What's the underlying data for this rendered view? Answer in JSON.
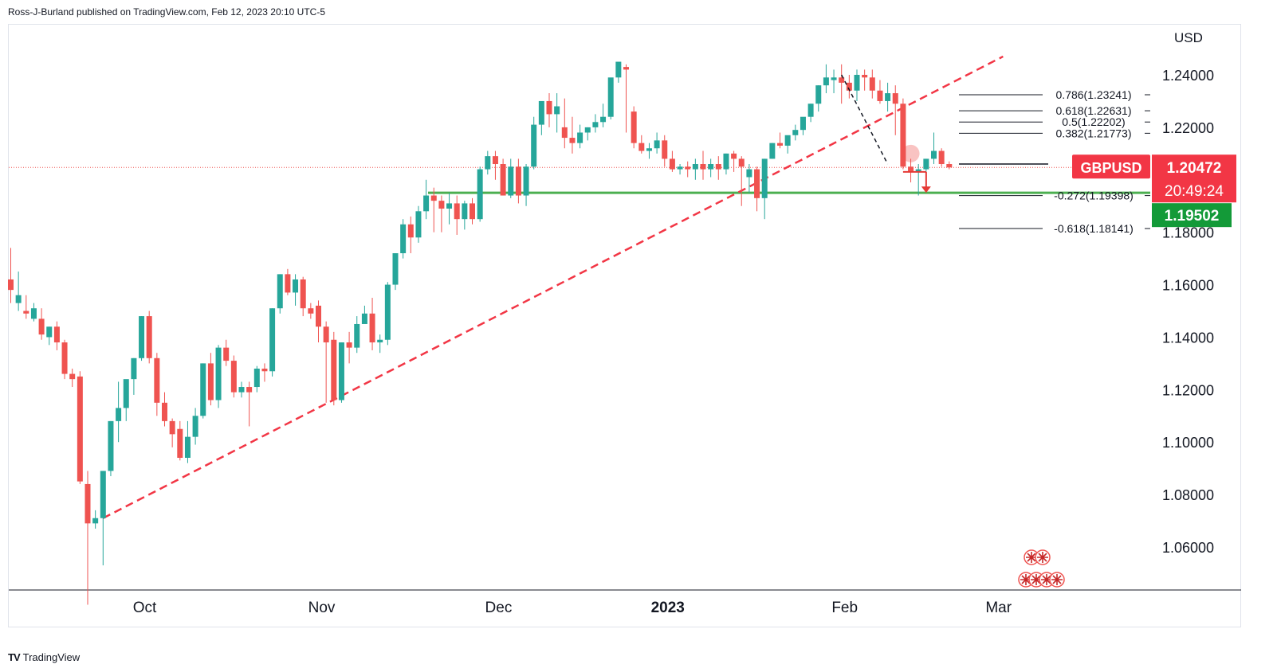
{
  "publisher": "Ross-J-Burland published on TradingView.com, Feb 12, 2023 20:10 UTC-5",
  "brand": "TradingView",
  "brand_logo": "TV",
  "colors": {
    "up": "#26a69a",
    "down": "#ef5350",
    "support": "#4caf50",
    "trend": "#f23645",
    "fib": "#131722"
  },
  "chart_data": {
    "type": "candlestick",
    "symbol": "GBPUSD",
    "currency_label": "USD",
    "ylim": [
      1.045,
      1.252
    ],
    "yticks": [
      "1.24000",
      "1.22000",
      "1.20000",
      "1.18000",
      "1.16000",
      "1.14000",
      "1.12000",
      "1.10000",
      "1.08000",
      "1.06000"
    ],
    "yticks_values": [
      1.24,
      1.22,
      1.2,
      1.18,
      1.16,
      1.14,
      1.12,
      1.1,
      1.08,
      1.06
    ],
    "xticks": [
      {
        "label": "Oct",
        "index": 17,
        "bold": false
      },
      {
        "label": "Nov",
        "index": 40,
        "bold": false
      },
      {
        "label": "Dec",
        "index": 63,
        "bold": false
      },
      {
        "label": "2023",
        "index": 85,
        "bold": true
      },
      {
        "label": "Feb",
        "index": 108,
        "bold": false
      },
      {
        "label": "Mar",
        "index": 128,
        "bold": false
      }
    ],
    "ohlc": [
      [
        1.162,
        1.174,
        1.158,
        1.153
      ],
      [
        1.153,
        1.165,
        1.156,
        1.15
      ],
      [
        1.15,
        1.156,
        1.149,
        1.147
      ],
      [
        1.147,
        1.153,
        1.151,
        1.146
      ],
      [
        1.147,
        1.151,
        1.141,
        1.139
      ],
      [
        1.14,
        1.144,
        1.144,
        1.137
      ],
      [
        1.144,
        1.146,
        1.138,
        1.135
      ],
      [
        1.138,
        1.139,
        1.126,
        1.124
      ],
      [
        1.126,
        1.128,
        1.124,
        1.121
      ],
      [
        1.125,
        1.127,
        1.085,
        1.084
      ],
      [
        1.084,
        1.089,
        1.069,
        1.038
      ],
      [
        1.069,
        1.074,
        1.071,
        1.067
      ],
      [
        1.071,
        1.089,
        1.089,
        1.053
      ],
      [
        1.089,
        1.108,
        1.108,
        1.087
      ],
      [
        1.108,
        1.123,
        1.113,
        1.1
      ],
      [
        1.113,
        1.122,
        1.124,
        1.108
      ],
      [
        1.124,
        1.132,
        1.132,
        1.118
      ],
      [
        1.132,
        1.148,
        1.148,
        1.131
      ],
      [
        1.148,
        1.15,
        1.132,
        1.13
      ],
      [
        1.132,
        1.134,
        1.115,
        1.11
      ],
      [
        1.115,
        1.119,
        1.108,
        1.106
      ],
      [
        1.108,
        1.109,
        1.103,
        1.098
      ],
      [
        1.105,
        1.108,
        1.094,
        1.093
      ],
      [
        1.094,
        1.108,
        1.102,
        1.092
      ],
      [
        1.102,
        1.113,
        1.11,
        1.099
      ],
      [
        1.11,
        1.13,
        1.13,
        1.109
      ],
      [
        1.13,
        1.134,
        1.116,
        1.114
      ],
      [
        1.116,
        1.137,
        1.136,
        1.113
      ],
      [
        1.136,
        1.139,
        1.131,
        1.129
      ],
      [
        1.131,
        1.133,
        1.119,
        1.117
      ],
      [
        1.119,
        1.123,
        1.121,
        1.117
      ],
      [
        1.121,
        1.123,
        1.119,
        1.106
      ],
      [
        1.121,
        1.129,
        1.128,
        1.119
      ],
      [
        1.128,
        1.13,
        1.127,
        1.123
      ],
      [
        1.127,
        1.151,
        1.151,
        1.125
      ],
      [
        1.151,
        1.164,
        1.164,
        1.149
      ],
      [
        1.164,
        1.166,
        1.157,
        1.156
      ],
      [
        1.157,
        1.164,
        1.162,
        1.152
      ],
      [
        1.162,
        1.163,
        1.151,
        1.148
      ],
      [
        1.151,
        1.153,
        1.149,
        1.147
      ],
      [
        1.152,
        1.154,
        1.144,
        1.138
      ],
      [
        1.144,
        1.146,
        1.138,
        1.115
      ],
      [
        1.139,
        1.142,
        1.116,
        1.114
      ],
      [
        1.116,
        1.138,
        1.138,
        1.115
      ],
      [
        1.138,
        1.142,
        1.136,
        1.13
      ],
      [
        1.136,
        1.148,
        1.145,
        1.134
      ],
      [
        1.145,
        1.152,
        1.149,
        1.146
      ],
      [
        1.149,
        1.155,
        1.138,
        1.135
      ],
      [
        1.138,
        1.141,
        1.139,
        1.134
      ],
      [
        1.139,
        1.161,
        1.16,
        1.137
      ],
      [
        1.16,
        1.172,
        1.172,
        1.158
      ],
      [
        1.172,
        1.185,
        1.183,
        1.17
      ],
      [
        1.183,
        1.186,
        1.178,
        1.172
      ],
      [
        1.178,
        1.19,
        1.188,
        1.176
      ],
      [
        1.188,
        1.2,
        1.194,
        1.185
      ],
      [
        1.194,
        1.197,
        1.192,
        1.18
      ],
      [
        1.192,
        1.194,
        1.189,
        1.18
      ],
      [
        1.189,
        1.195,
        1.191,
        1.183
      ],
      [
        1.191,
        1.194,
        1.185,
        1.179
      ],
      [
        1.185,
        1.192,
        1.191,
        1.181
      ],
      [
        1.191,
        1.193,
        1.185,
        1.183
      ],
      [
        1.185,
        1.205,
        1.204,
        1.184
      ],
      [
        1.204,
        1.211,
        1.209,
        1.202
      ],
      [
        1.209,
        1.211,
        1.206,
        1.2
      ],
      [
        1.206,
        1.208,
        1.194,
        1.194
      ],
      [
        1.194,
        1.208,
        1.205,
        1.193
      ],
      [
        1.205,
        1.208,
        1.194,
        1.191
      ],
      [
        1.194,
        1.206,
        1.205,
        1.19
      ],
      [
        1.205,
        1.224,
        1.221,
        1.204
      ],
      [
        1.221,
        1.229,
        1.23,
        1.217
      ],
      [
        1.23,
        1.233,
        1.225,
        1.22
      ],
      [
        1.225,
        1.233,
        1.228,
        1.218
      ],
      [
        1.22,
        1.231,
        1.216,
        1.212
      ],
      [
        1.216,
        1.224,
        1.214,
        1.21
      ],
      [
        1.214,
        1.221,
        1.218,
        1.212
      ],
      [
        1.218,
        1.22,
        1.22,
        1.215
      ],
      [
        1.22,
        1.225,
        1.222,
        1.218
      ],
      [
        1.222,
        1.229,
        1.224,
        1.22
      ],
      [
        1.224,
        1.238,
        1.239,
        1.223
      ],
      [
        1.239,
        1.244,
        1.245,
        1.237
      ],
      [
        1.243,
        1.244,
        1.242,
        1.218
      ],
      [
        1.226,
        1.228,
        1.214,
        1.212
      ],
      [
        1.214,
        1.217,
        1.211,
        1.21
      ],
      [
        1.211,
        1.214,
        1.212,
        1.208
      ],
      [
        1.212,
        1.218,
        1.215,
        1.21
      ],
      [
        1.215,
        1.217,
        1.208,
        1.205
      ],
      [
        1.208,
        1.211,
        1.204,
        1.203
      ],
      [
        1.204,
        1.206,
        1.205,
        1.202
      ],
      [
        1.205,
        1.207,
        1.204,
        1.201
      ],
      [
        1.204,
        1.208,
        1.206,
        1.2
      ],
      [
        1.206,
        1.211,
        1.204,
        1.2
      ],
      [
        1.204,
        1.208,
        1.206,
        1.201
      ],
      [
        1.206,
        1.209,
        1.204,
        1.2
      ],
      [
        1.204,
        1.21,
        1.21,
        1.202
      ],
      [
        1.21,
        1.211,
        1.208,
        1.203
      ],
      [
        1.208,
        1.209,
        1.205,
        1.19
      ],
      [
        1.201,
        1.206,
        1.204,
        1.195
      ],
      [
        1.204,
        1.205,
        1.193,
        1.188
      ],
      [
        1.193,
        1.208,
        1.208,
        1.185
      ],
      [
        1.208,
        1.214,
        1.214,
        1.208
      ],
      [
        1.214,
        1.218,
        1.213,
        1.212
      ],
      [
        1.213,
        1.216,
        1.217,
        1.21
      ],
      [
        1.217,
        1.221,
        1.219,
        1.215
      ],
      [
        1.219,
        1.223,
        1.224,
        1.217
      ],
      [
        1.224,
        1.229,
        1.229,
        1.222
      ],
      [
        1.229,
        1.236,
        1.236,
        1.226
      ],
      [
        1.236,
        1.244,
        1.239,
        1.233
      ],
      [
        1.238,
        1.242,
        1.239,
        1.233
      ],
      [
        1.239,
        1.244,
        1.237,
        1.229
      ],
      [
        1.237,
        1.24,
        1.234,
        1.231
      ],
      [
        1.234,
        1.242,
        1.24,
        1.23
      ],
      [
        1.24,
        1.242,
        1.239,
        1.234
      ],
      [
        1.239,
        1.242,
        1.234,
        1.231
      ],
      [
        1.234,
        1.238,
        1.23,
        1.229
      ],
      [
        1.23,
        1.237,
        1.233,
        1.226
      ],
      [
        1.233,
        1.236,
        1.229,
        1.217
      ],
      [
        1.229,
        1.231,
        1.205,
        1.204
      ],
      [
        1.205,
        1.208,
        1.203,
        1.199
      ],
      [
        1.203,
        1.206,
        1.204,
        1.194
      ],
      [
        1.204,
        1.208,
        1.208,
        1.203
      ],
      [
        1.208,
        1.218,
        1.211,
        1.206
      ],
      [
        1.211,
        1.212,
        1.206,
        1.205
      ],
      [
        1.206,
        1.207,
        1.2047,
        1.204
      ]
    ],
    "last_price": 1.20472,
    "last_price_label": "1.20472",
    "countdown": "20:49:24",
    "support_level": 1.19502,
    "support_label": "1.19502",
    "trendlines": [
      {
        "from_index": 12,
        "from_price": 1.071,
        "to_index": 129,
        "to_price": 1.247,
        "style": "dashed"
      }
    ],
    "fib_levels": [
      {
        "label": "0.786(1.23241)",
        "value": 1.23241
      },
      {
        "label": "0.618(1.22631)",
        "value": 1.22631
      },
      {
        "label": "0.5(1.22202)",
        "value": 1.22202
      },
      {
        "label": "0.382(1.21773)",
        "value": 1.21773
      },
      {
        "label": "-0.272(1.19398)",
        "value": 1.19398
      },
      {
        "label": "-0.618(1.18141)",
        "value": 1.18141
      }
    ],
    "fib_swing": {
      "from_index": 108,
      "from_price": 1.24,
      "to_index": 114,
      "to_price": 1.206
    },
    "fib_base": 1.206,
    "forecast_arrow": {
      "index": 119,
      "from": 1.203,
      "to": 1.195
    }
  }
}
